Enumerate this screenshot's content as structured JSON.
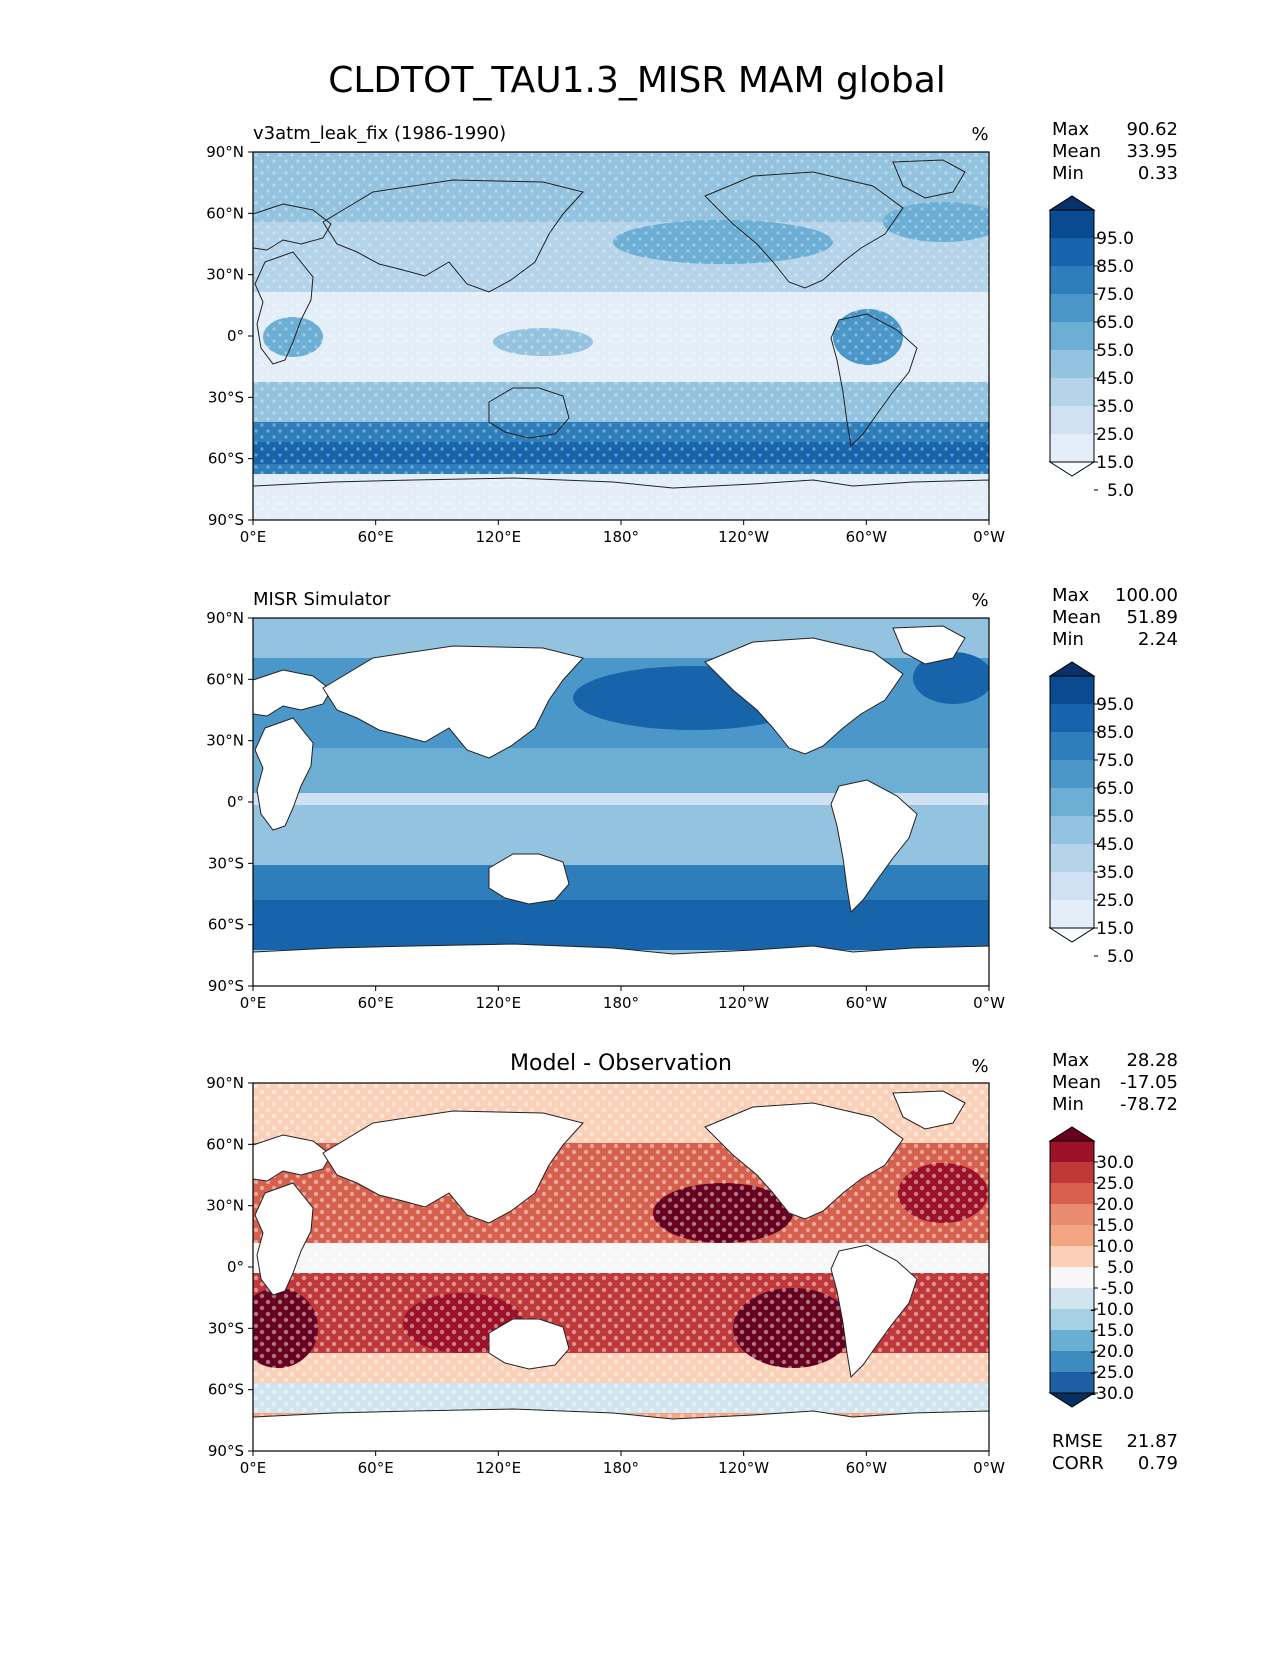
{
  "chart_data": {
    "type": "heatmap",
    "title": "CLDTOT_TAU1.3_MISR MAM global",
    "x_tick_labels": [
      "0°E",
      "60°E",
      "120°E",
      "180°",
      "120°W",
      "60°W",
      "0°W"
    ],
    "y_tick_labels": [
      "90°N",
      "60°N",
      "30°N",
      "0°",
      "30°S",
      "60°S",
      "90°S"
    ],
    "panels": [
      {
        "id": "model",
        "left_title": "v3atm_leak_fix (1986-1990)",
        "center_title": "",
        "units": "%",
        "stats": [
          {
            "label": "Max",
            "value": "90.62"
          },
          {
            "label": "Mean",
            "value": "33.95"
          },
          {
            "label": "Min",
            "value": "0.33"
          }
        ],
        "colorbar_labels": [
          "95.0",
          "85.0",
          "75.0",
          "65.0",
          "55.0",
          "45.0",
          "35.0",
          "25.0",
          "15.0",
          "5.0"
        ],
        "colormap": "Blues",
        "colors": [
          "#f7fbff",
          "#e3eef9",
          "#cfe1f2",
          "#b5d4e9",
          "#93c3df",
          "#6daed5",
          "#4b97c9",
          "#2f7ebc",
          "#1864aa",
          "#0a4a90",
          "#08306b"
        ]
      },
      {
        "id": "obs",
        "left_title": "MISR Simulator",
        "center_title": "",
        "units": "%",
        "stats": [
          {
            "label": "Max",
            "value": "100.00"
          },
          {
            "label": "Mean",
            "value": "51.89"
          },
          {
            "label": "Min",
            "value": "2.24"
          }
        ],
        "colorbar_labels": [
          "95.0",
          "85.0",
          "75.0",
          "65.0",
          "55.0",
          "45.0",
          "35.0",
          "25.0",
          "15.0",
          "5.0"
        ],
        "colormap": "Blues",
        "colors": [
          "#f7fbff",
          "#e3eef9",
          "#cfe1f2",
          "#b5d4e9",
          "#93c3df",
          "#6daed5",
          "#4b97c9",
          "#2f7ebc",
          "#1864aa",
          "#0a4a90",
          "#08306b"
        ]
      },
      {
        "id": "diff",
        "left_title": "",
        "center_title": "Model - Observation",
        "units": "%",
        "stats": [
          {
            "label": "Max",
            "value": "28.28"
          },
          {
            "label": "Mean",
            "value": "-17.05"
          },
          {
            "label": "Min",
            "value": "-78.72"
          }
        ],
        "colorbar_labels": [
          "30.0",
          "25.0",
          "20.0",
          "15.0",
          "10.0",
          "5.0",
          "-5.0",
          "-10.0",
          "-15.0",
          "-20.0",
          "-25.0",
          "-30.0"
        ],
        "colormap": "RdBu_r",
        "colors": [
          "#67001f",
          "#9c1127",
          "#c0383a",
          "#d6604d",
          "#e98b6f",
          "#f4a582",
          "#fbd0b9",
          "#f7f7f7",
          "#d1e5f0",
          "#a7d0e4",
          "#6aaed1",
          "#3d8bbf",
          "#1d5fa2",
          "#053061"
        ],
        "bottom_stats": [
          {
            "label": "RMSE",
            "value": "21.87"
          },
          {
            "label": "CORR",
            "value": "0.79"
          }
        ]
      }
    ]
  }
}
